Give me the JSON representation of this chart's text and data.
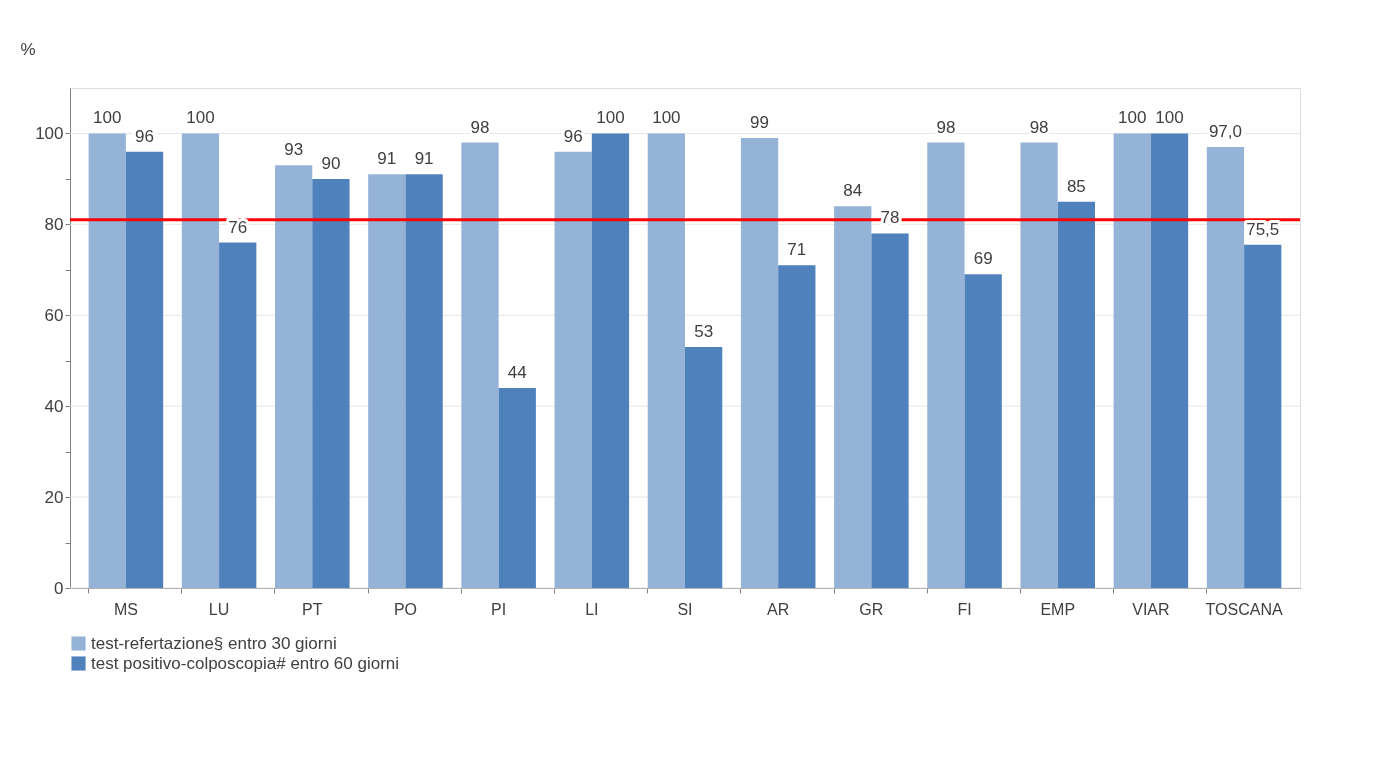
{
  "chart_data": {
    "type": "bar",
    "ylabel": "%",
    "categories": [
      "MS",
      "LU",
      "PT",
      "PO",
      "PI",
      "LI",
      "SI",
      "AR",
      "GR",
      "FI",
      "EMP",
      "VIAR",
      "TOSCANA"
    ],
    "series": [
      {
        "name": "test-refertazione§ entro 30 giorni",
        "color": "#95b3d7",
        "values": [
          100,
          100,
          93,
          91,
          98,
          96,
          100,
          99,
          84,
          98,
          98,
          100,
          97.0
        ],
        "value_labels": [
          "100",
          "100",
          "93",
          "91",
          "98",
          "96",
          "100",
          "99",
          "84",
          "98",
          "98",
          "100",
          "97,0"
        ]
      },
      {
        "name": "test positivo-colposcopia# entro 60 giorni",
        "color": "#4f81bd",
        "values": [
          96,
          76,
          90,
          91,
          44,
          100,
          53,
          71,
          78,
          69,
          85,
          100,
          75.5
        ],
        "value_labels": [
          "96",
          "76",
          "90",
          "91",
          "44",
          "100",
          "53",
          "71",
          "78",
          "69",
          "85",
          "100",
          "75,5"
        ]
      }
    ],
    "ylim": [
      0,
      110
    ],
    "yticks": [
      0,
      {
        "value": 10,
        "label": null
      },
      20,
      {
        "value": 30,
        "label": null
      },
      40,
      {
        "value": 50,
        "label": null
      },
      60,
      {
        "value": 70,
        "label": null
      },
      80,
      {
        "value": 90,
        "label": null
      },
      100
    ],
    "grid": "y",
    "legend": "bottom",
    "ref_lines": [
      {
        "axis": "y",
        "value": 81,
        "color": "#ff0000"
      }
    ]
  }
}
